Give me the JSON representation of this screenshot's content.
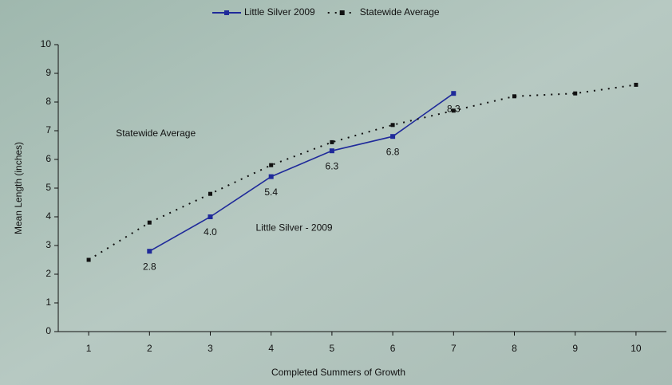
{
  "chart_data": {
    "type": "line",
    "x_label": "Completed Summers of Growth",
    "y_label": "Mean Length (inches)",
    "xlim": [
      0.5,
      10.5
    ],
    "xticks": [
      1,
      2,
      3,
      4,
      5,
      6,
      7,
      8,
      9,
      10
    ],
    "ylim": [
      0,
      10
    ],
    "yticks": [
      0,
      1,
      2,
      3,
      4,
      5,
      6,
      7,
      8,
      9,
      10
    ],
    "legend": "top",
    "series": [
      {
        "name": "Little Silver 2009",
        "color": "#1f2a9a",
        "line_style": "solid",
        "x": [
          2,
          3,
          4,
          5,
          6,
          7
        ],
        "values": [
          2.8,
          4.0,
          5.4,
          6.3,
          6.8,
          8.3
        ],
        "value_labels": [
          "2.8",
          "4.0",
          "5.4",
          "6.3",
          "6.8",
          "8.3"
        ]
      },
      {
        "name": "Statewide Average",
        "color": "#111111",
        "line_style": "dotted",
        "x": [
          1,
          2,
          3,
          4,
          5,
          6,
          7,
          8,
          9,
          10
        ],
        "values": [
          2.5,
          3.8,
          4.8,
          5.8,
          6.6,
          7.2,
          7.7,
          8.2,
          8.3,
          8.6
        ]
      }
    ],
    "annotations": [
      {
        "text": "Statewide Average",
        "x": 2,
        "y": 6.9
      },
      {
        "text": "Little Silver - 2009",
        "x": 4.3,
        "y": 3.6
      }
    ]
  }
}
